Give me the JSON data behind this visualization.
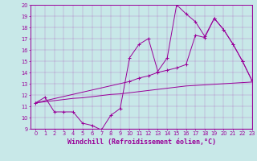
{
  "xlabel": "Windchill (Refroidissement éolien,°C)",
  "bg_color": "#c8e8e8",
  "line_color": "#990099",
  "line1_x": [
    0,
    1,
    2,
    3,
    4,
    5,
    6,
    7,
    8,
    9,
    10,
    11,
    12,
    13,
    14,
    15,
    16,
    17,
    18,
    19,
    20,
    21,
    22,
    23
  ],
  "line1_y": [
    11.3,
    11.8,
    10.5,
    10.5,
    10.5,
    9.5,
    9.3,
    8.9,
    10.2,
    10.8,
    15.3,
    16.5,
    17.0,
    14.1,
    15.3,
    20.0,
    19.2,
    18.5,
    17.2,
    18.8,
    17.8,
    16.5,
    15.0,
    13.3
  ],
  "line2_x": [
    0,
    10,
    11,
    12,
    13,
    14,
    15,
    16,
    17,
    18,
    19,
    20,
    21,
    22,
    23
  ],
  "line2_y": [
    11.3,
    13.2,
    13.5,
    13.7,
    14.0,
    14.2,
    14.4,
    14.7,
    17.3,
    17.1,
    18.8,
    17.8,
    16.5,
    15.0,
    13.3
  ],
  "line3_x": [
    0,
    1,
    2,
    3,
    4,
    5,
    6,
    7,
    8,
    9,
    10,
    11,
    12,
    13,
    14,
    15,
    16,
    17,
    18,
    19,
    20,
    21,
    22,
    23
  ],
  "line3_y": [
    11.3,
    11.4,
    11.5,
    11.6,
    11.7,
    11.75,
    11.85,
    11.95,
    12.05,
    12.1,
    12.2,
    12.3,
    12.4,
    12.5,
    12.6,
    12.7,
    12.8,
    12.85,
    12.9,
    12.95,
    13.0,
    13.05,
    13.1,
    13.15
  ],
  "xlim": [
    -0.5,
    23
  ],
  "ylim": [
    9,
    20
  ],
  "yticks": [
    9,
    10,
    11,
    12,
    13,
    14,
    15,
    16,
    17,
    18,
    19,
    20
  ],
  "xticks": [
    0,
    1,
    2,
    3,
    4,
    5,
    6,
    7,
    8,
    9,
    10,
    11,
    12,
    13,
    14,
    15,
    16,
    17,
    18,
    19,
    20,
    21,
    22,
    23
  ],
  "tick_fontsize": 4.8,
  "xlabel_fontsize": 6.0,
  "marker": "+"
}
